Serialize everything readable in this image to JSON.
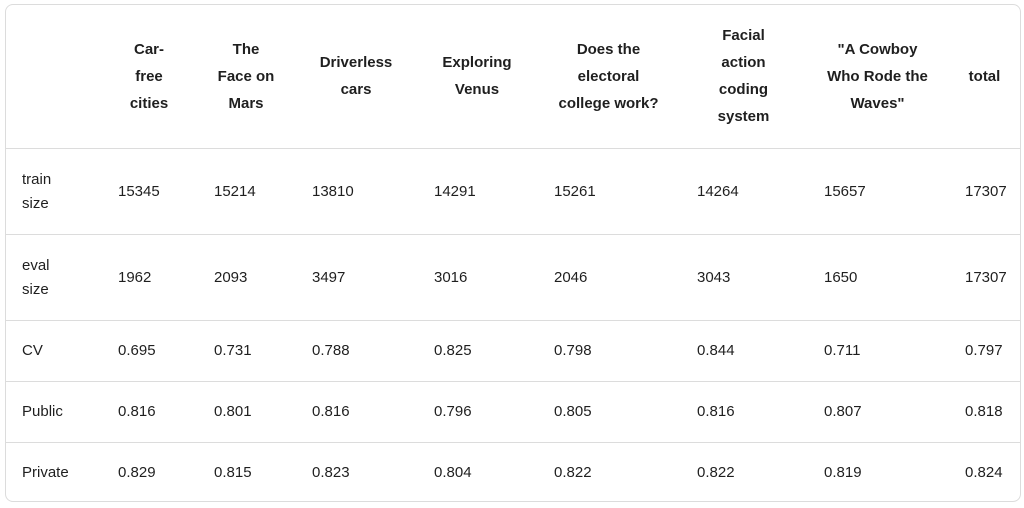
{
  "table": {
    "columns": [
      "",
      "Car-\nfree\ncities",
      "The\nFace on\nMars",
      "Driverless\ncars",
      "Exploring\nVenus",
      "Does the\nelectoral\ncollege work?",
      "Facial\naction\ncoding\nsystem",
      "\"A Cowboy\nWho Rode the\nWaves\"",
      "total"
    ],
    "rows": [
      {
        "label": "train\nsize",
        "cells": [
          "15345",
          "15214",
          "13810",
          "14291",
          "15261",
          "14264",
          "15657",
          "17307"
        ]
      },
      {
        "label": "eval\nsize",
        "cells": [
          "1962",
          "2093",
          "3497",
          "3016",
          "2046",
          "3043",
          "1650",
          "17307"
        ]
      },
      {
        "label": "CV",
        "cells": [
          "0.695",
          "0.731",
          "0.788",
          "0.825",
          "0.798",
          "0.844",
          "0.711",
          "0.797"
        ]
      },
      {
        "label": "Public",
        "cells": [
          "0.816",
          "0.801",
          "0.816",
          "0.796",
          "0.805",
          "0.816",
          "0.807",
          "0.818"
        ]
      },
      {
        "label": "Private",
        "cells": [
          "0.829",
          "0.815",
          "0.823",
          "0.804",
          "0.822",
          "0.822",
          "0.819",
          "0.824"
        ]
      }
    ]
  }
}
